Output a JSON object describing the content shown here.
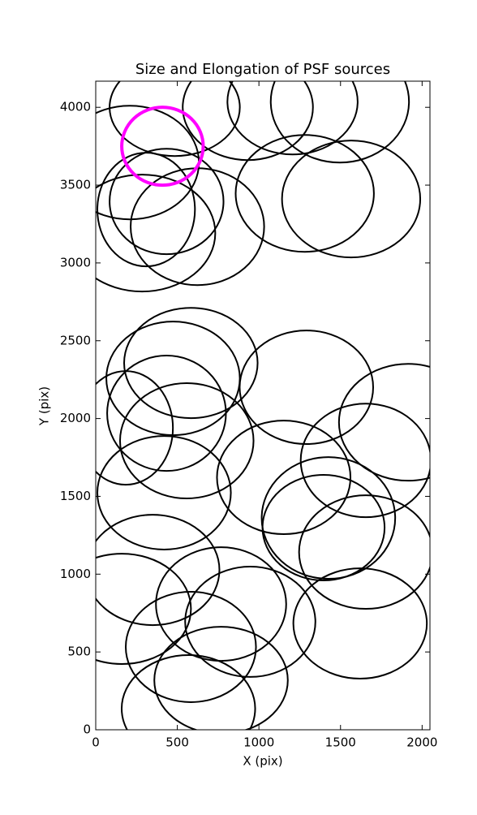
{
  "chart_data": {
    "type": "ellipse",
    "title": "Size and Elongation of PSF sources",
    "xlabel": "X (pix)",
    "ylabel": "Y (pix)",
    "xlim": [
      0,
      2048
    ],
    "ylim": [
      0,
      4168
    ],
    "xticks": [
      0,
      500,
      1000,
      1500,
      2000
    ],
    "yticks": [
      0,
      500,
      1000,
      1500,
      2000,
      2500,
      3000,
      3500,
      4000
    ],
    "series": [
      {
        "color": "#000000",
        "x": [
          484,
          932,
          1206,
          1496,
          1281,
          1565,
          209,
          309,
          434,
          284,
          623,
          583,
          474,
          1291,
          434,
          184,
          558,
          1914,
          1655,
          1152,
          419,
          1426,
          1396,
          1655,
          349,
          160,
          768,
          1620,
          947,
          583,
          768,
          568
        ],
        "y": [
          4000,
          4000,
          4036,
          4036,
          3447,
          3411,
          3645,
          3343,
          3395,
          3192,
          3233,
          2357,
          2258,
          2201,
          2034,
          1940,
          1857,
          1976,
          1731,
          1622,
          1523,
          1361,
          1299,
          1142,
          1027,
          777,
          808,
          683,
          694,
          532,
          318,
          136
        ],
        "width": [
          798,
          798,
          798,
          847,
          847,
          847,
          847,
          598,
          698,
          897,
          818,
          818,
          818,
          818,
          728,
          578,
          818,
          847,
          798,
          818,
          818,
          818,
          748,
          818,
          818,
          847,
          798,
          818,
          798,
          798,
          818,
          818
        ],
        "height": [
          626,
          678,
          678,
          782,
          751,
          751,
          730,
          730,
          678,
          751,
          751,
          709,
          730,
          730,
          741,
          730,
          741,
          751,
          730,
          730,
          730,
          782,
          678,
          730,
          709,
          709,
          730,
          709,
          709,
          709,
          688,
          688
        ]
      },
      {
        "color": "#ff00ff",
        "x": [
          409
        ],
        "y": [
          3750
        ],
        "width": [
          499
        ],
        "height": [
          501
        ]
      }
    ]
  }
}
